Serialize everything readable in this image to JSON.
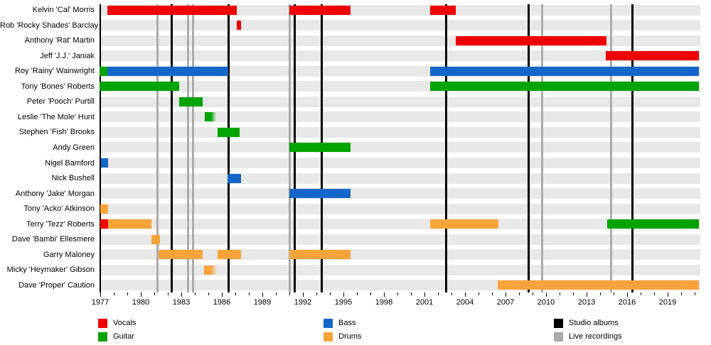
{
  "chart_data": {
    "type": "bar",
    "subtype": "band-member-timeline",
    "title": "",
    "x_axis": {
      "start_year": 1976.95,
      "end_year": 2021.3,
      "major_ticks": [
        1977,
        1980,
        1983,
        1986,
        1989,
        1992,
        1995,
        1998,
        2001,
        2004,
        2007,
        2010,
        2013,
        2016,
        2019
      ],
      "minor_tick_interval_years": 1,
      "first_minor_tick": 1977,
      "last_minor_tick": 2021,
      "grid": false
    },
    "role_colors": {
      "vocals": "#ee0000",
      "guitar": "#00a300",
      "bass": "#1467c8",
      "drums": "#f9a43b"
    },
    "event_colors": {
      "studio_albums": "#000000",
      "live_recordings": "#ababab"
    },
    "row_band_color": "#e8e8e8",
    "members": [
      {
        "name": "Kelvin 'Cal' Morris",
        "segments": [
          {
            "role": "vocals",
            "start": 1977.55,
            "end": 1987.1
          },
          {
            "role": "vocals",
            "start": 1991.0,
            "end": 1995.5
          },
          {
            "role": "vocals",
            "start": 2001.4,
            "end": 2003.3
          }
        ]
      },
      {
        "name": "Rob 'Rocky Shades' Barclay",
        "segments": [
          {
            "role": "vocals",
            "start": 1987.1,
            "end": 1987.4
          }
        ]
      },
      {
        "name": "Anthony 'Rat' Martin",
        "segments": [
          {
            "role": "vocals",
            "start": 2003.3,
            "end": 2014.5
          }
        ]
      },
      {
        "name": "Jeff 'J.J.' Janiak",
        "segments": [
          {
            "role": "vocals",
            "start": 2014.4,
            "end": 2021.3
          }
        ]
      },
      {
        "name": "Roy 'Rainy' Wainwright",
        "segments": [
          {
            "role": "guitar",
            "start": 1976.95,
            "end": 1977.55
          },
          {
            "role": "bass",
            "start": 1977.55,
            "end": 1986.5
          },
          {
            "role": "bass",
            "start": 2001.4,
            "end": 2021.3
          }
        ]
      },
      {
        "name": "Tony 'Bones' Roberts",
        "segments": [
          {
            "role": "guitar",
            "start": 1976.95,
            "end": 1982.85
          },
          {
            "role": "guitar",
            "start": 2001.4,
            "end": 2021.3
          }
        ]
      },
      {
        "name": "Peter 'Pooch' Purtill",
        "segments": [
          {
            "role": "guitar",
            "start": 1982.85,
            "end": 1984.6
          }
        ]
      },
      {
        "name": "Leslie 'The Mole' Hunt",
        "segments": [
          {
            "role": "guitar",
            "start": 1984.75,
            "end": 1985.6,
            "fade": true
          }
        ]
      },
      {
        "name": "Stephen 'Fish' Brooks",
        "segments": [
          {
            "role": "guitar",
            "start": 1985.7,
            "end": 1987.3
          }
        ]
      },
      {
        "name": "Andy Green",
        "segments": [
          {
            "role": "guitar",
            "start": 1991.0,
            "end": 1995.5
          }
        ]
      },
      {
        "name": "Nigel Bamford",
        "segments": [
          {
            "role": "bass",
            "start": 1977.05,
            "end": 1977.6
          }
        ]
      },
      {
        "name": "Nick Bushell",
        "segments": [
          {
            "role": "bass",
            "start": 1986.4,
            "end": 1987.4
          }
        ]
      },
      {
        "name": "Anthony 'Jake' Morgan",
        "segments": [
          {
            "role": "bass",
            "start": 1991.0,
            "end": 1995.5
          }
        ]
      },
      {
        "name": "Tony 'Acko' Atkinson",
        "segments": [
          {
            "role": "drums",
            "start": 1977.0,
            "end": 1977.6
          }
        ]
      },
      {
        "name": "Terry 'Tezz' Roberts",
        "segments": [
          {
            "role": "vocals",
            "start": 1977.0,
            "end": 1977.6
          },
          {
            "role": "drums",
            "start": 1977.6,
            "end": 1980.8
          },
          {
            "role": "drums",
            "start": 2001.4,
            "end": 2006.5
          },
          {
            "role": "guitar",
            "start": 2014.5,
            "end": 2021.3
          }
        ]
      },
      {
        "name": "Dave 'Bambi' Ellesmere",
        "segments": [
          {
            "role": "drums",
            "start": 1980.8,
            "end": 1981.4
          }
        ]
      },
      {
        "name": "Garry Maloney",
        "segments": [
          {
            "role": "drums",
            "start": 1981.3,
            "end": 1984.6
          },
          {
            "role": "drums",
            "start": 1985.7,
            "end": 1987.4
          },
          {
            "role": "drums",
            "start": 1991.0,
            "end": 1995.5
          }
        ]
      },
      {
        "name": "Micky 'Heymaker' Gibson",
        "segments": [
          {
            "role": "drums",
            "start": 1984.7,
            "end": 1985.65,
            "fade": true
          }
        ]
      },
      {
        "name": "Dave 'Proper' Caution",
        "segments": [
          {
            "role": "drums",
            "start": 2006.4,
            "end": 2021.3
          }
        ]
      }
    ],
    "event_lines": {
      "studio_albums": [
        1982.3,
        1986.5,
        1991.4,
        1993.4,
        2002.6,
        2008.7,
        2016.4
      ],
      "live_recordings": [
        1981.25,
        1983.5,
        1983.85,
        1991.05,
        2009.7,
        2014.8
      ]
    },
    "legend": {
      "columns": [
        {
          "items": [
            {
              "label": "Vocals",
              "color": "#ee0000"
            },
            {
              "label": "Guitar",
              "color": "#00a300"
            }
          ]
        },
        {
          "items": [
            {
              "label": "Bass",
              "color": "#1467c8"
            },
            {
              "label": "Drums",
              "color": "#f9a43b"
            }
          ]
        },
        {
          "items": [
            {
              "label": "Studio albums",
              "color": "#000000"
            },
            {
              "label": "Live recordings",
              "color": "#ababab"
            }
          ]
        }
      ]
    }
  }
}
